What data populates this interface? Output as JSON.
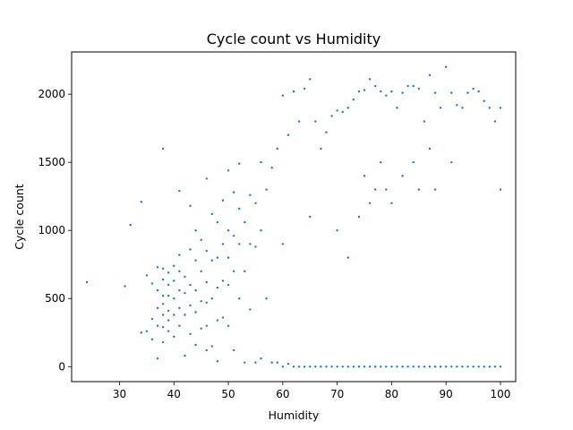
{
  "chart_data": {
    "type": "scatter",
    "title": "Cycle count vs Humidity",
    "xlabel": "Humidity",
    "ylabel": "Cycle count",
    "xlim": [
      21.2,
      102.8
    ],
    "ylim": [
      -110,
      2310
    ],
    "xticks": [
      30,
      40,
      50,
      60,
      70,
      80,
      90,
      100
    ],
    "yticks": [
      0,
      500,
      1000,
      1500,
      2000
    ],
    "grid": false,
    "legend": "none",
    "marker_color": "#1f77b4",
    "series": [
      {
        "x": [
          24,
          31,
          32,
          34,
          34,
          35,
          35,
          36,
          36,
          36,
          37,
          37,
          37,
          37,
          37,
          38,
          38,
          38,
          38,
          38,
          38,
          38,
          38,
          39,
          39,
          39,
          39,
          39,
          39,
          40,
          40,
          40,
          40,
          40,
          41,
          41,
          41,
          41,
          41,
          41,
          42,
          42,
          42,
          42,
          43,
          43,
          43,
          43,
          43,
          44,
          44,
          44,
          44,
          44,
          45,
          45,
          45,
          45,
          46,
          46,
          46,
          46,
          46,
          46,
          47,
          47,
          47,
          47,
          48,
          48,
          48,
          48,
          48,
          49,
          49,
          49,
          49,
          50,
          50,
          50,
          50,
          50,
          51,
          51,
          51,
          51,
          52,
          52,
          52,
          52,
          53,
          53,
          53,
          54,
          54,
          54,
          55,
          55,
          55,
          56,
          56,
          56,
          57,
          57,
          58,
          58,
          59,
          59,
          60,
          60,
          60,
          61,
          61,
          62,
          62,
          63,
          63,
          64,
          64,
          65,
          65,
          65,
          66,
          66,
          67,
          67,
          68,
          68,
          69,
          69,
          70,
          70,
          70,
          71,
          71,
          72,
          72,
          72,
          73,
          73,
          74,
          74,
          74,
          75,
          75,
          75,
          76,
          76,
          76,
          77,
          77,
          77,
          78,
          78,
          78,
          79,
          79,
          79,
          80,
          80,
          80,
          81,
          81,
          82,
          82,
          82,
          83,
          83,
          84,
          84,
          84,
          85,
          85,
          85,
          86,
          86,
          87,
          87,
          87,
          88,
          88,
          88,
          89,
          89,
          90,
          90,
          91,
          91,
          91,
          92,
          92,
          93,
          93,
          94,
          94,
          95,
          95,
          96,
          96,
          97,
          97,
          98,
          98,
          99,
          99,
          100,
          100,
          100
        ],
        "y": [
          620,
          590,
          1040,
          1210,
          250,
          670,
          260,
          610,
          350,
          200,
          730,
          560,
          430,
          300,
          60,
          1600,
          720,
          640,
          520,
          460,
          380,
          290,
          180,
          690,
          600,
          520,
          410,
          340,
          260,
          740,
          630,
          500,
          380,
          220,
          1290,
          820,
          700,
          560,
          430,
          300,
          660,
          540,
          380,
          80,
          1180,
          860,
          600,
          450,
          240,
          1000,
          780,
          560,
          400,
          160,
          930,
          700,
          480,
          280,
          1380,
          850,
          620,
          470,
          300,
          120,
          1120,
          780,
          500,
          150,
          1060,
          800,
          580,
          340,
          40,
          1220,
          900,
          630,
          360,
          1440,
          1000,
          800,
          600,
          300,
          1280,
          960,
          700,
          120,
          1490,
          1160,
          900,
          500,
          1060,
          700,
          30,
          1260,
          900,
          420,
          1200,
          880,
          30,
          1500,
          1000,
          60,
          1300,
          500,
          1460,
          30,
          1600,
          30,
          1990,
          900,
          0,
          1700,
          20,
          2020,
          0,
          1800,
          0,
          2040,
          0,
          2110,
          1100,
          0,
          1800,
          0,
          1600,
          0,
          1720,
          0,
          1840,
          0,
          1880,
          1000,
          0,
          1870,
          0,
          1900,
          800,
          0,
          1960,
          0,
          2020,
          1100,
          0,
          2030,
          1400,
          0,
          2110,
          1200,
          0,
          2060,
          1300,
          0,
          2020,
          1500,
          0,
          1990,
          1300,
          0,
          2020,
          1200,
          0,
          1900,
          0,
          2010,
          1400,
          0,
          2060,
          0,
          2060,
          1500,
          0,
          2040,
          1300,
          0,
          1800,
          0,
          2140,
          1600,
          0,
          2010,
          1300,
          0,
          1900,
          0,
          2200,
          0,
          2010,
          1500,
          0,
          1920,
          0,
          1900,
          0,
          2010,
          0,
          2040,
          0,
          2020,
          0,
          1950,
          0,
          1900,
          0,
          1800,
          0,
          1900,
          1300,
          0
        ]
      }
    ]
  }
}
